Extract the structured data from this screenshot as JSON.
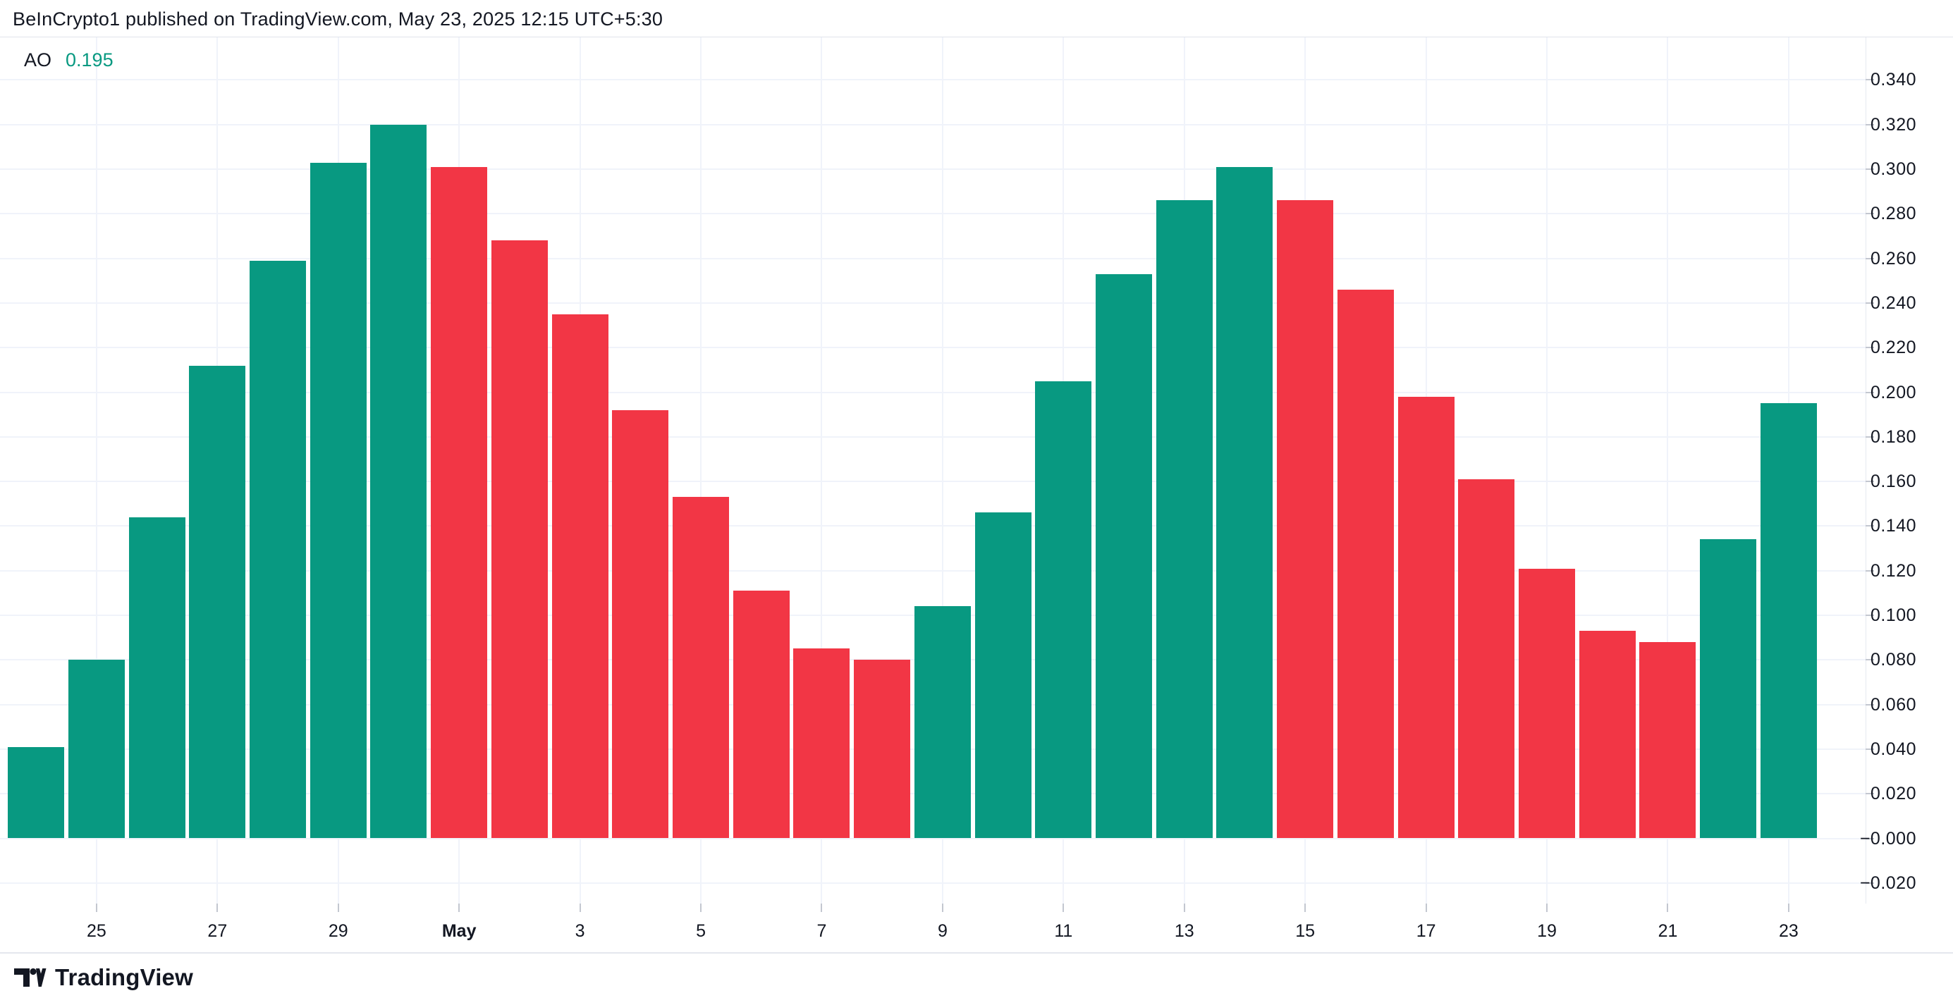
{
  "header": {
    "attribution": "BeInCrypto1 published on TradingView.com, May 23, 2025 12:15 UTC+5:30"
  },
  "indicator": {
    "name": "AO",
    "value": "0.195",
    "value_color": "#089981"
  },
  "footer": {
    "brand": "TradingView"
  },
  "chart_data": {
    "type": "bar",
    "title": "AO (Awesome Oscillator) histogram",
    "categories": [
      "Apr 24",
      "Apr 25",
      "Apr 26",
      "Apr 27",
      "Apr 28",
      "Apr 29",
      "Apr 30",
      "May 1",
      "May 2",
      "May 3",
      "May 4",
      "May 5",
      "May 6",
      "May 7",
      "May 8",
      "May 9",
      "May 10",
      "May 11",
      "May 12",
      "May 13",
      "May 14",
      "May 15",
      "May 16",
      "May 17",
      "May 18",
      "May 19",
      "May 20",
      "May 21",
      "May 22",
      "May 23"
    ],
    "values": [
      0.041,
      0.08,
      0.144,
      0.212,
      0.259,
      0.303,
      0.32,
      0.301,
      0.268,
      0.235,
      0.192,
      0.153,
      0.111,
      0.085,
      0.08,
      0.104,
      0.146,
      0.205,
      0.253,
      0.286,
      0.301,
      0.286,
      0.246,
      0.198,
      0.161,
      0.121,
      0.093,
      0.088,
      0.134,
      0.195
    ],
    "directions": [
      "up",
      "up",
      "up",
      "up",
      "up",
      "up",
      "up",
      "down",
      "down",
      "down",
      "down",
      "down",
      "down",
      "down",
      "down",
      "up",
      "up",
      "up",
      "up",
      "up",
      "up",
      "down",
      "down",
      "down",
      "down",
      "down",
      "down",
      "down",
      "up",
      "up"
    ],
    "bar_up_color": "#089981",
    "bar_down_color": "#f23645",
    "grid": true,
    "legend_position": "top-left",
    "ylim": [
      -0.029,
      0.359
    ],
    "x_ticks": [
      {
        "bar_index": 1,
        "label": "25"
      },
      {
        "bar_index": 3,
        "label": "27"
      },
      {
        "bar_index": 5,
        "label": "29"
      },
      {
        "bar_index": 7,
        "label": "May",
        "bold": true
      },
      {
        "bar_index": 9,
        "label": "3"
      },
      {
        "bar_index": 11,
        "label": "5"
      },
      {
        "bar_index": 13,
        "label": "7"
      },
      {
        "bar_index": 15,
        "label": "9"
      },
      {
        "bar_index": 17,
        "label": "11"
      },
      {
        "bar_index": 19,
        "label": "13"
      },
      {
        "bar_index": 21,
        "label": "15"
      },
      {
        "bar_index": 23,
        "label": "17"
      },
      {
        "bar_index": 25,
        "label": "19"
      },
      {
        "bar_index": 27,
        "label": "21"
      },
      {
        "bar_index": 29,
        "label": "23"
      }
    ],
    "y_ticks": [
      {
        "value": 0.34,
        "label": "0.340"
      },
      {
        "value": 0.32,
        "label": "0.320"
      },
      {
        "value": 0.3,
        "label": "0.300"
      },
      {
        "value": 0.28,
        "label": "0.280"
      },
      {
        "value": 0.26,
        "label": "0.260"
      },
      {
        "value": 0.24,
        "label": "0.240"
      },
      {
        "value": 0.22,
        "label": "0.220"
      },
      {
        "value": 0.2,
        "label": "0.200"
      },
      {
        "value": 0.18,
        "label": "0.180"
      },
      {
        "value": 0.16,
        "label": "0.160"
      },
      {
        "value": 0.14,
        "label": "0.140"
      },
      {
        "value": 0.12,
        "label": "0.120"
      },
      {
        "value": 0.1,
        "label": "0.100"
      },
      {
        "value": 0.08,
        "label": "0.080"
      },
      {
        "value": 0.06,
        "label": "0.060"
      },
      {
        "value": 0.04,
        "label": "0.040"
      },
      {
        "value": 0.02,
        "label": "0.020"
      },
      {
        "value": 0.0,
        "label": "−0.000"
      },
      {
        "value": -0.02,
        "label": "−0.020"
      }
    ]
  }
}
